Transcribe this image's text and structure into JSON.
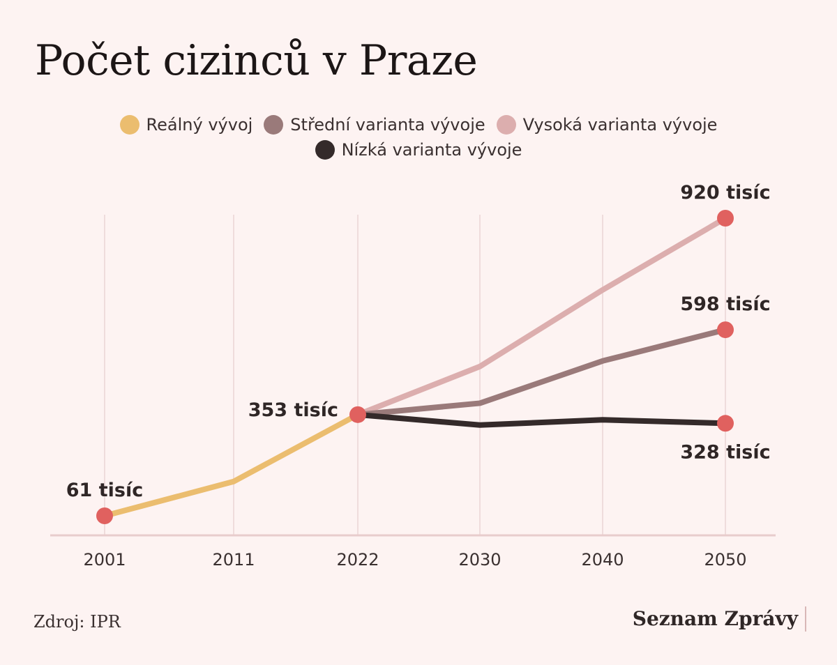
{
  "title": "Počet cizinců v Praze",
  "source": "Zdroj: IPR",
  "brand": "Seznam Zprávy",
  "colors": {
    "background": "#fdf3f2",
    "real": "#ebbd6f",
    "medium": "#9a7a7a",
    "high": "#dcaeae",
    "low": "#342a2a",
    "marker": "#e0615f",
    "grid": "#efdcdc",
    "axis": "#e8cccc"
  },
  "chart_data": {
    "type": "line",
    "title": "Počet cizinců v Praze",
    "xlabel": "",
    "ylabel": "",
    "x_ticks": [
      2001,
      2011,
      2022,
      2030,
      2040,
      2050
    ],
    "grid": "vertical",
    "legend_position": "top-center",
    "series": [
      {
        "name": "Reálný vývoj",
        "color": "#ebbd6f",
        "points": [
          [
            2001,
            61
          ],
          [
            2011,
            160
          ],
          [
            2022,
            353
          ]
        ]
      },
      {
        "name": "Střední varianta vývoje",
        "color": "#9a7a7a",
        "points": [
          [
            2022,
            353
          ],
          [
            2030,
            386
          ],
          [
            2040,
            508
          ],
          [
            2050,
            598
          ]
        ]
      },
      {
        "name": "Vysoká varianta vývoje",
        "color": "#dcaeae",
        "points": [
          [
            2022,
            353
          ],
          [
            2030,
            492
          ],
          [
            2040,
            713
          ],
          [
            2050,
            920
          ]
        ]
      },
      {
        "name": "Nízká varianta vývoje",
        "color": "#342a2a",
        "points": [
          [
            2022,
            353
          ],
          [
            2030,
            323
          ],
          [
            2040,
            338
          ],
          [
            2050,
            328
          ]
        ]
      }
    ],
    "annotations": [
      {
        "x": 2001,
        "y": 61,
        "label": "61 tisíc",
        "placement": "above"
      },
      {
        "x": 2022,
        "y": 353,
        "label": "353 tisíc",
        "placement": "left"
      },
      {
        "x": 2050,
        "y": 920,
        "label": "920 tisíc",
        "placement": "above"
      },
      {
        "x": 2050,
        "y": 598,
        "label": "598 tisíc",
        "placement": "above"
      },
      {
        "x": 2050,
        "y": 328,
        "label": "328 tisíc",
        "placement": "below"
      }
    ]
  }
}
